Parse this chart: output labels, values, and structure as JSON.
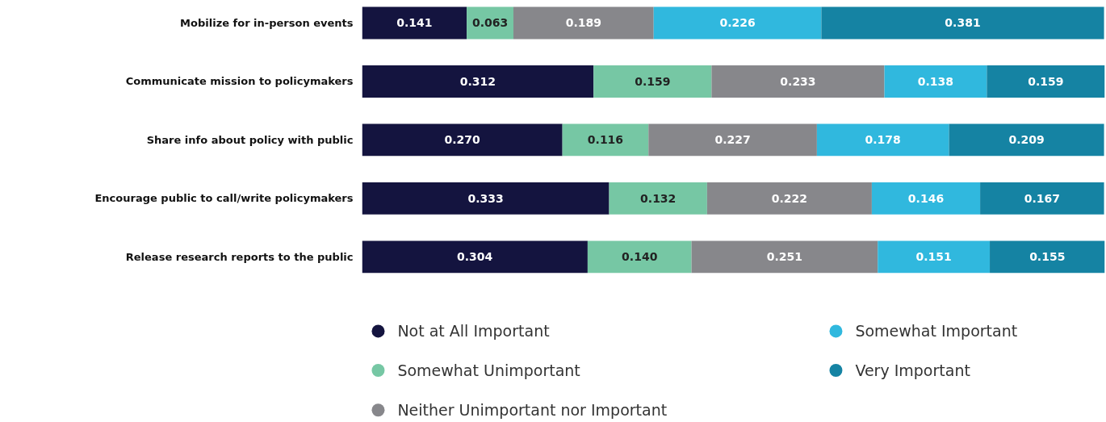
{
  "chart_data": {
    "type": "bar",
    "orientation": "horizontal",
    "stacked": true,
    "legend": "bottom",
    "grid": false,
    "categories": [
      "Mobilize for in-person events",
      "Communicate mission to policymakers",
      "Share info about policy with public",
      "Encourage public to call/write policymakers",
      "Release research reports to the public"
    ],
    "series": [
      {
        "name": "Not at All Important",
        "color": "#14143f",
        "values": [
          0.141,
          0.312,
          0.27,
          0.333,
          0.304
        ],
        "value_labels": [
          "0.141",
          "0.312",
          "0.270",
          "0.333",
          "0.304"
        ]
      },
      {
        "name": "Somewhat Unimportant",
        "color": "#76c7a4",
        "values": [
          0.063,
          0.159,
          0.116,
          0.132,
          0.14
        ],
        "value_labels": [
          "0.063",
          "0.159",
          "0.116",
          "0.132",
          "0.140"
        ]
      },
      {
        "name": "Neither Unimportant nor Important",
        "color": "#87878b",
        "values": [
          0.189,
          0.233,
          0.227,
          0.222,
          0.251
        ],
        "value_labels": [
          "0.189",
          "0.233",
          "0.227",
          "0.222",
          "0.251"
        ]
      },
      {
        "name": "Somewhat Important",
        "color": "#30b8de",
        "values": [
          0.226,
          0.138,
          0.178,
          0.146,
          0.151
        ],
        "value_labels": [
          "0.226",
          "0.138",
          "0.178",
          "0.146",
          "0.151"
        ]
      },
      {
        "name": "Very Important",
        "color": "#1583a3",
        "values": [
          0.381,
          0.159,
          0.209,
          0.167,
          0.155
        ],
        "value_labels": [
          "0.381",
          "0.159",
          "0.209",
          "0.167",
          "0.155"
        ]
      }
    ]
  }
}
